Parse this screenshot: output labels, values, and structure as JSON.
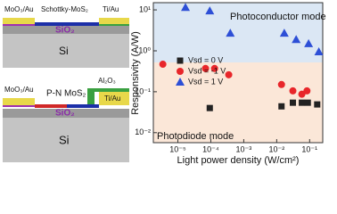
{
  "chart_data": {
    "type": "scatter",
    "xlabel": "Light power density (W/cm²)",
    "ylabel": "Responsivity (A/W)",
    "annotations": [
      "Photoconductor mode",
      "Photodiode mode"
    ],
    "xscale": "log",
    "yscale": "log",
    "xlim": [
      1.8e-06,
      0.25
    ],
    "ylim": [
      0.0057,
      15
    ],
    "xticks": [
      {
        "value": 1e-05,
        "label": "10⁻⁵"
      },
      {
        "value": 0.0001,
        "label": "10⁻⁴"
      },
      {
        "value": 0.001,
        "label": "10⁻³"
      },
      {
        "value": 0.01,
        "label": "10⁻²"
      },
      {
        "value": 0.1,
        "label": "10⁻¹"
      }
    ],
    "yticks": [
      {
        "value": 0.01,
        "label": "10⁻²"
      },
      {
        "value": 0.1,
        "label": "10⁻¹"
      },
      {
        "value": 1,
        "label": "10⁰"
      },
      {
        "value": 10,
        "label": "10¹"
      }
    ],
    "legend": "center left",
    "series": [
      {
        "name": "Vsd = 0 V",
        "color": "#222222",
        "marker": "square",
        "x": [
          9.3e-05,
          0.014,
          0.031,
          0.058,
          0.088,
          0.17
        ],
        "values": [
          0.04,
          0.044,
          0.054,
          0.054,
          0.054,
          0.049
        ]
      },
      {
        "name": "Vsd = -1 V",
        "color": "#e8262a",
        "marker": "circle",
        "x": [
          3.5e-06,
          6.9e-05,
          0.00013,
          0.00035,
          0.014,
          0.031,
          0.058,
          0.083
        ],
        "values": [
          0.47,
          0.37,
          0.37,
          0.26,
          0.15,
          0.105,
          0.087,
          0.105
        ]
      },
      {
        "name": "Vsd = 1 V",
        "color": "#2d4fd6",
        "marker": "triangle",
        "x": [
          1.7e-05,
          9.3e-05,
          0.00039,
          0.017,
          0.039,
          0.093,
          0.19
        ],
        "values": [
          11.5,
          9.5,
          2.7,
          2.7,
          1.9,
          1.5,
          0.95
        ]
      }
    ]
  },
  "diagrams": [
    {
      "labels": [
        "MoO₃/Au",
        "Schottky-MoS₂",
        "Ti/Au",
        "SiO₂",
        "Si"
      ]
    },
    {
      "labels": [
        "MoO₃/Au",
        "P-N MoS₂",
        "Al₂O₃",
        "Ti/Au",
        "SiO₂",
        "Si"
      ]
    }
  ]
}
